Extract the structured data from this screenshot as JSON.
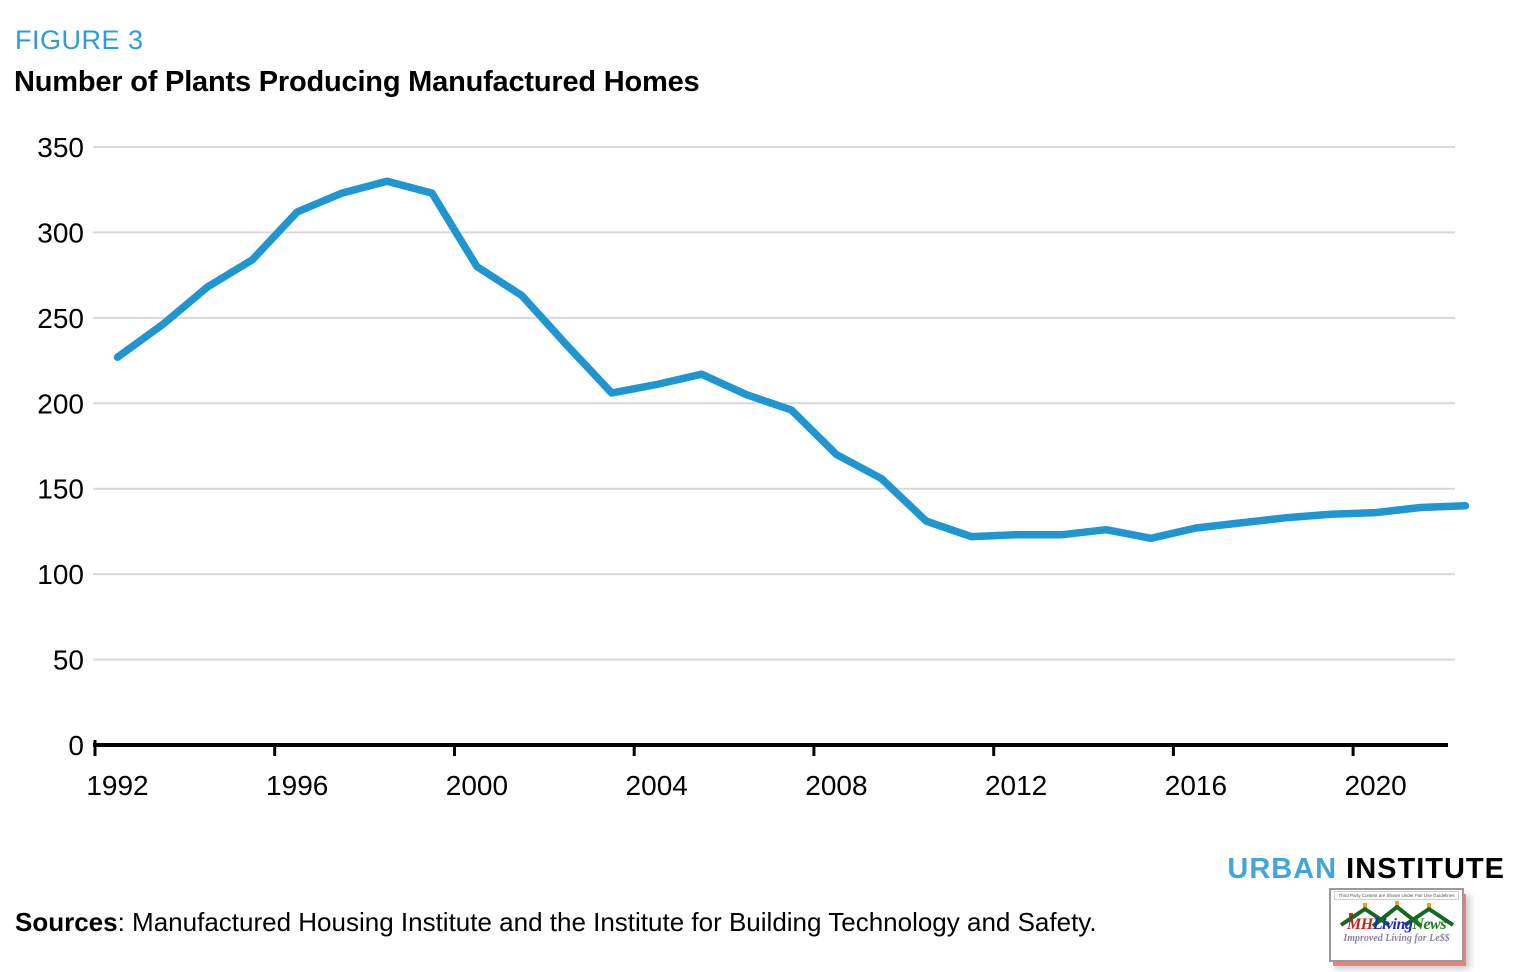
{
  "figure_label": "FIGURE 3",
  "title": "Number of Plants Producing Manufactured Homes",
  "chart_data": {
    "type": "line",
    "title": "Number of Plants Producing Manufactured Homes",
    "x": [
      1992,
      1993,
      1994,
      1995,
      1996,
      1997,
      1998,
      1999,
      2000,
      2001,
      2002,
      2003,
      2004,
      2005,
      2006,
      2007,
      2008,
      2009,
      2010,
      2011,
      2012,
      2013,
      2014,
      2015,
      2016,
      2017,
      2018,
      2019,
      2020,
      2021,
      2022
    ],
    "values": [
      227,
      246,
      268,
      284,
      312,
      323,
      330,
      323,
      280,
      263,
      234,
      206,
      211,
      217,
      205,
      196,
      170,
      156,
      131,
      122,
      123,
      123,
      126,
      121,
      127,
      130,
      133,
      135,
      136,
      139,
      140
    ],
    "series_name": "Number of plants producing manufactured homes",
    "xlabel": "",
    "ylabel": "",
    "ylim": [
      0,
      350
    ],
    "y_ticks": [
      0,
      50,
      100,
      150,
      200,
      250,
      300,
      350
    ],
    "x_tick_labels": [
      1992,
      1996,
      2000,
      2004,
      2008,
      2012,
      2016,
      2020
    ],
    "grid": "horizontal",
    "legend": "none",
    "line_color": "#1f96d2",
    "grid_color": "#d9d9d9",
    "axis_color": "#000000"
  },
  "footer": {
    "sources_label": "Sources",
    "sources_rest": ": Manufactured Housing Institute and the Institute for Building Technology and Safety."
  },
  "branding": {
    "urban": "URBAN",
    "institute": "INSTITUTE",
    "urban_color": "#46a5d8",
    "mhlivingnews": {
      "fine_print": "Third Party Content are Shown Under Fair Use Guidelines",
      "mh": "MH",
      "living": "Living",
      "news": "News",
      "tagline": "Improved Living for Le$$"
    }
  },
  "colors": {
    "figure_label": "#2a9ed6",
    "title": "#000000",
    "background": "#ffffff"
  }
}
